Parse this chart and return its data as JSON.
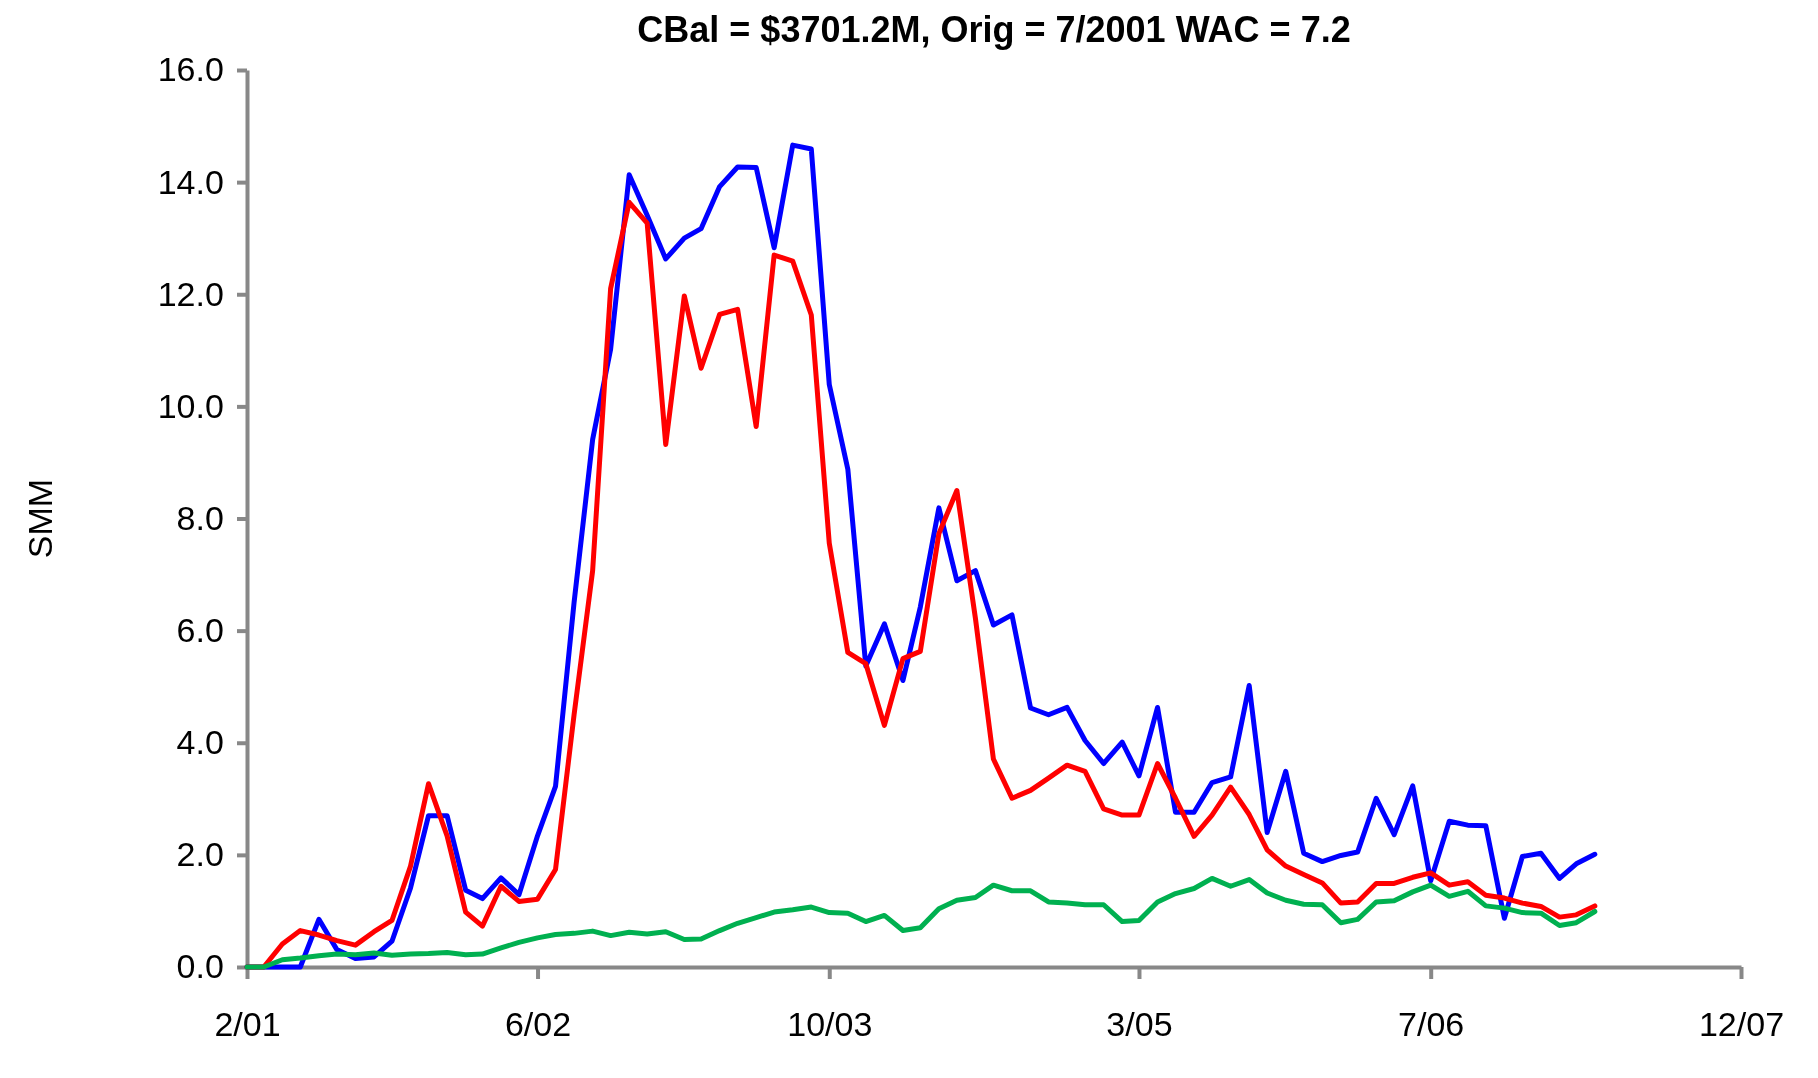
{
  "chart_data": {
    "type": "line",
    "title": "CBal = $3701.2M, Orig = 7/2001 WAC = 7.2",
    "ylabel": "SMM",
    "x": [
      "2001-02",
      "2001-03",
      "2001-04",
      "2001-05",
      "2001-06",
      "2001-07",
      "2001-08",
      "2001-09",
      "2001-10",
      "2001-11",
      "2001-12",
      "2002-01",
      "2002-02",
      "2002-03",
      "2002-04",
      "2002-05",
      "2002-06",
      "2002-07",
      "2002-08",
      "2002-09",
      "2002-10",
      "2002-11",
      "2002-12",
      "2003-01",
      "2003-02",
      "2003-03",
      "2003-04",
      "2003-05",
      "2003-06",
      "2003-07",
      "2003-08",
      "2003-09",
      "2003-10",
      "2003-11",
      "2003-12",
      "2004-01",
      "2004-02",
      "2004-03",
      "2004-04",
      "2004-05",
      "2004-06",
      "2004-07",
      "2004-08",
      "2004-09",
      "2004-10",
      "2004-11",
      "2004-12",
      "2005-01",
      "2005-02",
      "2005-03",
      "2005-04",
      "2005-05",
      "2005-06",
      "2005-07",
      "2005-08",
      "2005-09",
      "2005-10",
      "2005-11",
      "2005-12",
      "2006-01",
      "2006-02",
      "2006-03",
      "2006-04",
      "2006-05",
      "2006-06",
      "2006-07",
      "2006-08",
      "2006-09",
      "2006-10",
      "2006-11",
      "2006-12",
      "2007-01",
      "2007-02",
      "2007-03",
      "2007-04"
    ],
    "xlim": [
      "2001-02",
      "2007-12"
    ],
    "xticks": [
      {
        "value": "2001-02",
        "label": "2/01"
      },
      {
        "value": "2002-06",
        "label": "6/02"
      },
      {
        "value": "2003-10",
        "label": "10/03"
      },
      {
        "value": "2005-03",
        "label": "3/05"
      },
      {
        "value": "2006-07",
        "label": "7/06"
      },
      {
        "value": "2007-12",
        "label": "12/07"
      }
    ],
    "ylim": [
      0,
      16
    ],
    "yticks": [
      {
        "value": 0,
        "label": "0.0"
      },
      {
        "value": 2,
        "label": "2.0"
      },
      {
        "value": 4,
        "label": "4.0"
      },
      {
        "value": 6,
        "label": "6.0"
      },
      {
        "value": 8,
        "label": "8.0"
      },
      {
        "value": 10,
        "label": "10.0"
      },
      {
        "value": 12,
        "label": "12.0"
      },
      {
        "value": 14,
        "label": "14.0"
      },
      {
        "value": 16,
        "label": "16.0"
      }
    ],
    "grid": false,
    "marker": "none",
    "line_style": "solid",
    "series": [
      {
        "color": "#0000ff",
        "values": [
          0,
          0,
          0,
          0,
          0.85,
          0.31,
          0.15,
          0.18,
          0.46,
          1.41,
          2.7,
          2.7,
          1.37,
          1.22,
          1.59,
          1.29,
          2.34,
          3.22,
          6.5,
          9.41,
          11.02,
          14.13,
          13.41,
          12.63,
          13.0,
          13.17,
          13.92,
          14.27,
          14.26,
          12.83,
          14.66,
          14.59,
          10.39,
          8.88,
          5.37,
          6.12,
          5.11,
          6.42,
          8.19,
          6.89,
          7.07,
          6.1,
          6.28,
          4.62,
          4.5,
          4.63,
          4.04,
          3.63,
          4.01,
          3.41,
          4.63,
          2.76,
          2.76,
          3.29,
          3.39,
          5.02,
          2.4,
          3.49,
          2.03,
          1.88,
          1.99,
          2.05,
          3.01,
          2.36,
          3.23,
          1.54,
          2.6,
          2.53,
          2.52,
          0.87,
          1.97,
          2.03,
          1.58,
          1.84,
          2.01
        ]
      },
      {
        "color": "#ff0000",
        "values": [
          0,
          0,
          0.41,
          0.65,
          0.57,
          0.47,
          0.39,
          0.63,
          0.83,
          1.8,
          3.27,
          2.34,
          0.98,
          0.73,
          1.44,
          1.17,
          1.21,
          1.74,
          4.5,
          7.07,
          12.1,
          13.64,
          13.27,
          9.32,
          11.97,
          10.68,
          11.64,
          11.73,
          9.64,
          12.7,
          12.59,
          11.63,
          7.56,
          5.61,
          5.41,
          4.31,
          5.5,
          5.63,
          7.73,
          8.5,
          6.22,
          3.71,
          3.01,
          3.15,
          3.37,
          3.6,
          3.49,
          2.82,
          2.71,
          2.71,
          3.63,
          3.01,
          2.33,
          2.71,
          3.21,
          2.72,
          2.09,
          1.8,
          1.65,
          1.5,
          1.14,
          1.16,
          1.49,
          1.49,
          1.6,
          1.68,
          1.46,
          1.52,
          1.28,
          1.23,
          1.14,
          1.08,
          0.89,
          0.93,
          1.09
        ]
      },
      {
        "color": "#00b050",
        "values": [
          0,
          0,
          0.13,
          0.16,
          0.2,
          0.23,
          0.22,
          0.25,
          0.21,
          0.23,
          0.24,
          0.26,
          0.22,
          0.23,
          0.34,
          0.44,
          0.52,
          0.58,
          0.6,
          0.64,
          0.56,
          0.62,
          0.59,
          0.63,
          0.49,
          0.5,
          0.65,
          0.78,
          0.88,
          0.98,
          1.02,
          1.07,
          0.97,
          0.96,
          0.81,
          0.92,
          0.65,
          0.7,
          1.04,
          1.19,
          1.24,
          1.46,
          1.36,
          1.36,
          1.16,
          1.14,
          1.11,
          1.11,
          0.81,
          0.83,
          1.16,
          1.31,
          1.4,
          1.58,
          1.44,
          1.56,
          1.32,
          1.19,
          1.12,
          1.11,
          0.79,
          0.85,
          1.16,
          1.18,
          1.34,
          1.46,
          1.26,
          1.35,
          1.09,
          1.05,
          0.97,
          0.96,
          0.74,
          0.79,
          0.99
        ]
      }
    ]
  }
}
